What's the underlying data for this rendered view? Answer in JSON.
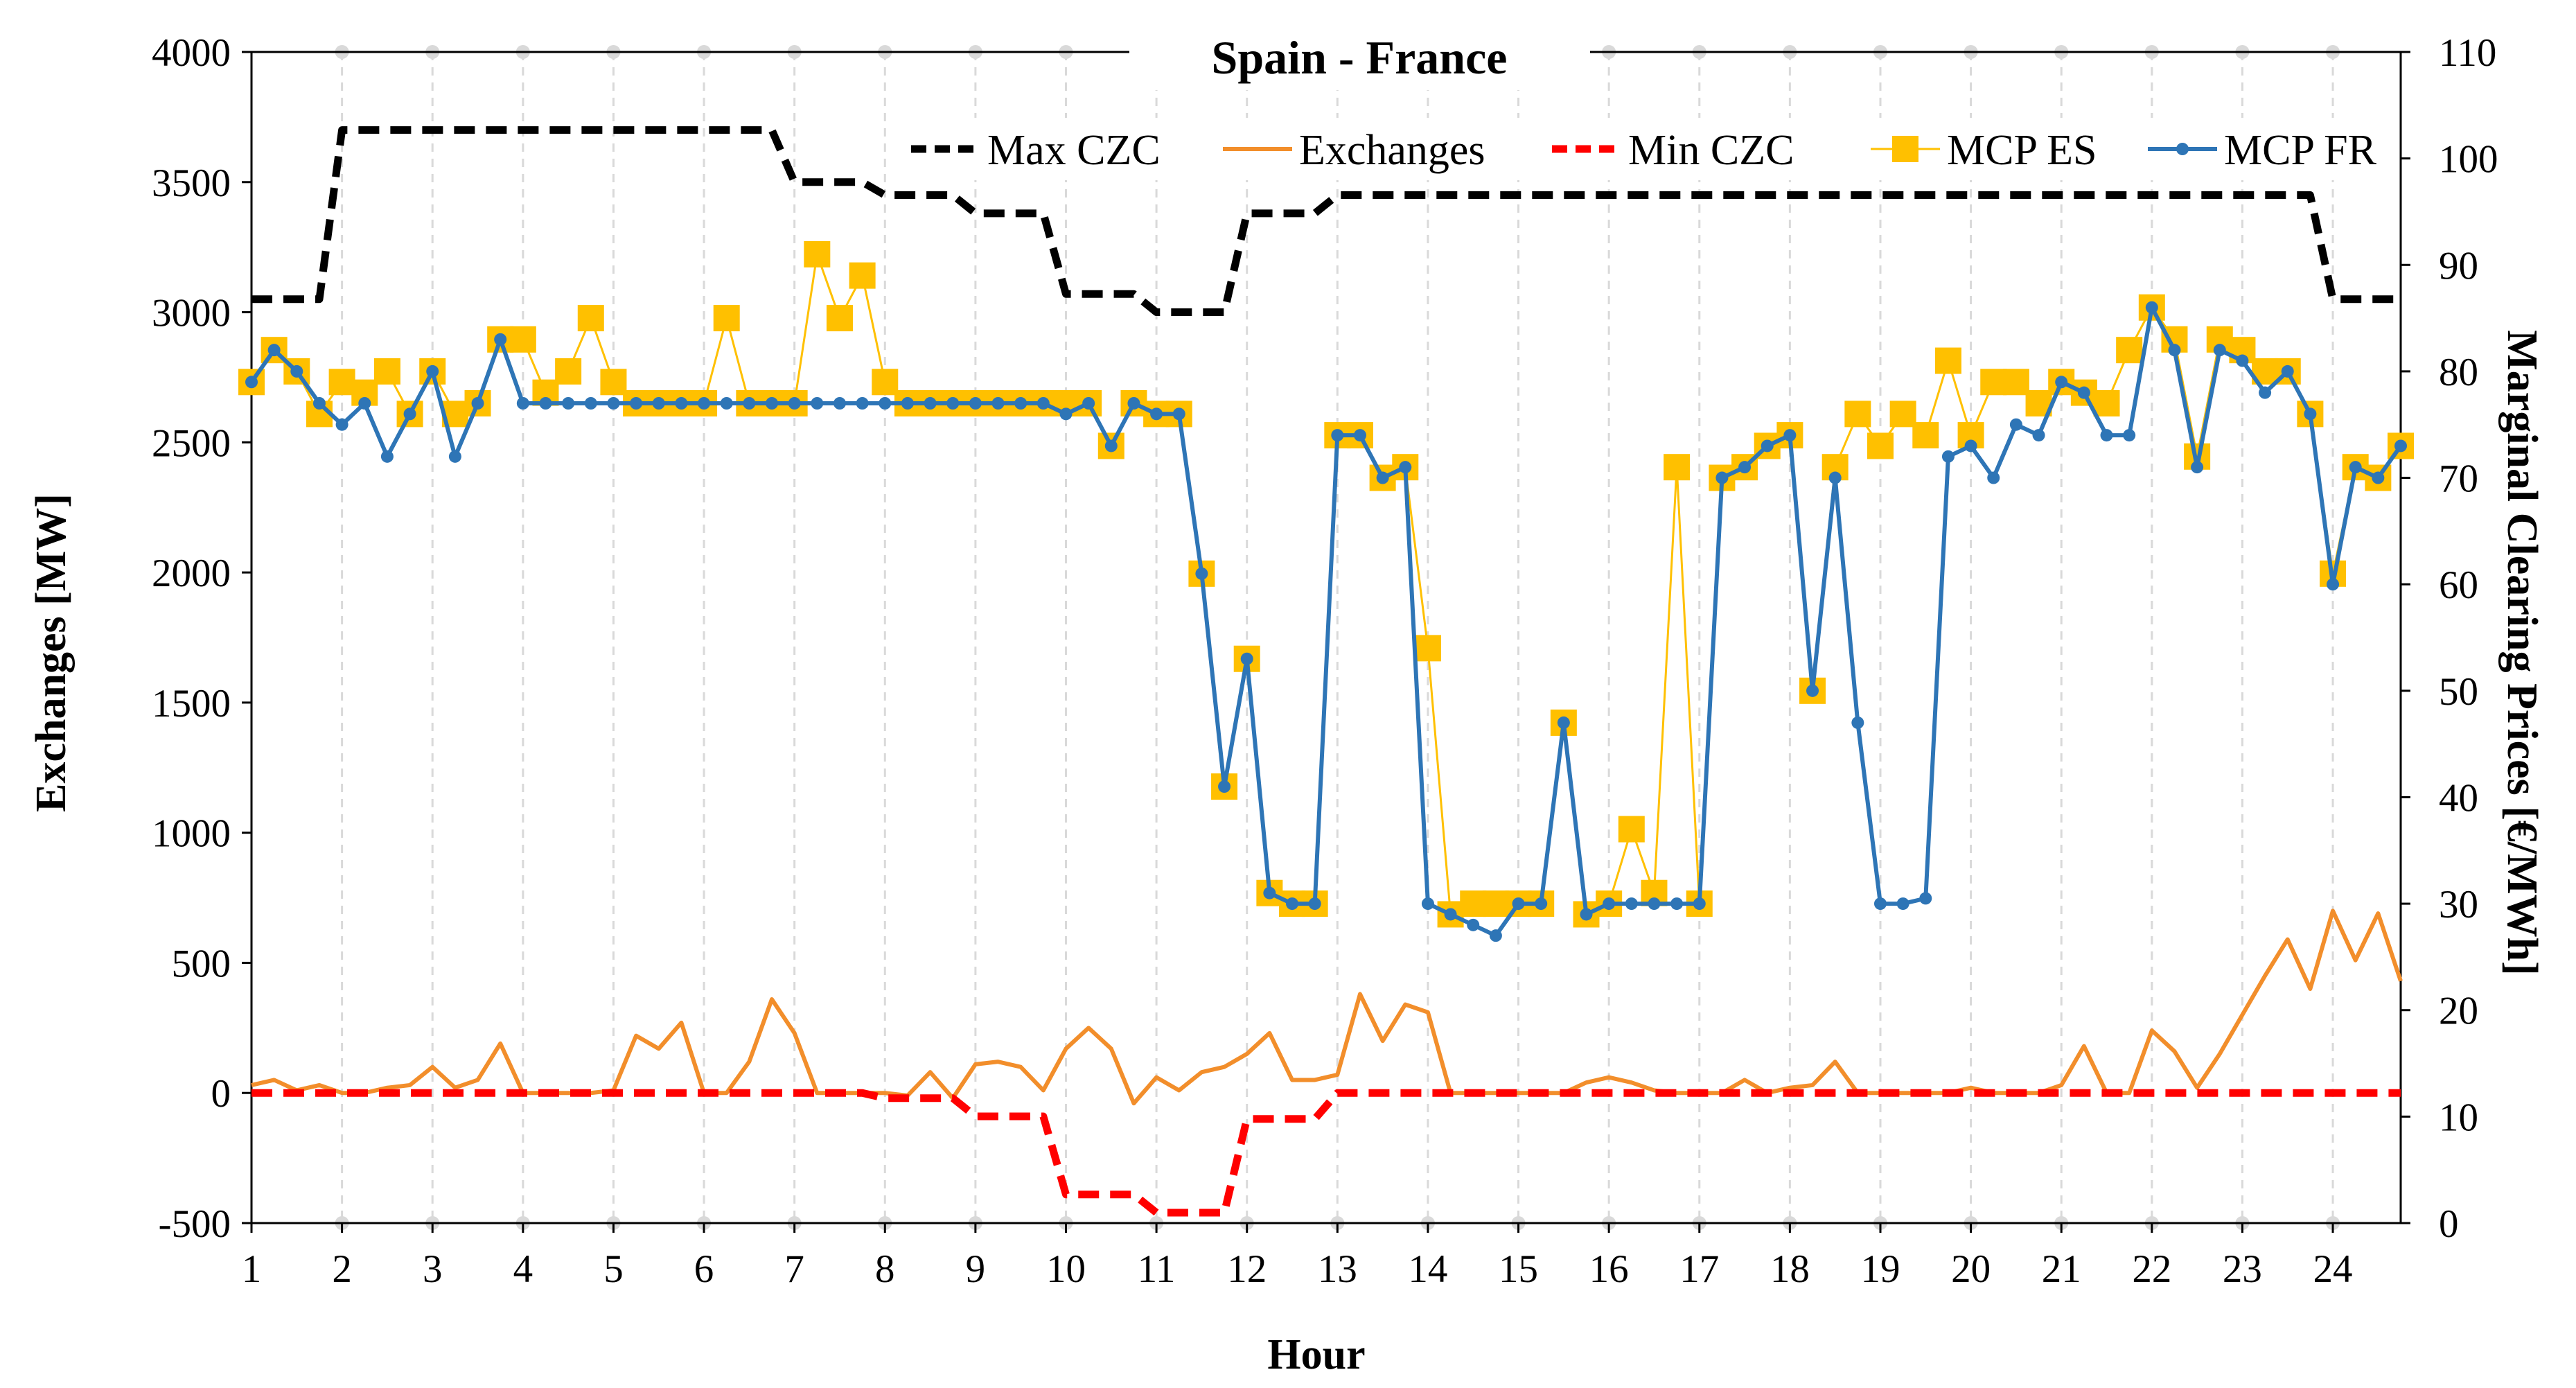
{
  "chart_data": {
    "type": "line",
    "title": "Spain - France",
    "xlabel": "Hour",
    "ylabel_left": "Exchanges [MW]",
    "ylabel_right": "Marginal Clearing Prices [€/MWh]",
    "ylim_left": [
      -500,
      4000
    ],
    "ylim_right": [
      0,
      110
    ],
    "xlim": [
      1,
      24.75
    ],
    "x_ticks": [
      1,
      2,
      3,
      4,
      5,
      6,
      7,
      8,
      9,
      10,
      11,
      12,
      13,
      14,
      15,
      16,
      17,
      18,
      19,
      20,
      21,
      22,
      23,
      24
    ],
    "y_left_ticks": [
      -500,
      0,
      500,
      1000,
      1500,
      2000,
      2500,
      3000,
      3500,
      4000
    ],
    "y_right_ticks": [
      0,
      10,
      20,
      30,
      40,
      50,
      60,
      70,
      80,
      90,
      100,
      110
    ],
    "grid": "vertical dashed",
    "legend": "top-right",
    "x": [
      1,
      1.25,
      1.5,
      1.75,
      2,
      2.25,
      2.5,
      2.75,
      3,
      3.25,
      3.5,
      3.75,
      4,
      4.25,
      4.5,
      4.75,
      5,
      5.25,
      5.5,
      5.75,
      6,
      6.25,
      6.5,
      6.75,
      7,
      7.25,
      7.5,
      7.75,
      8,
      8.25,
      8.5,
      8.75,
      9,
      9.25,
      9.5,
      9.75,
      10,
      10.25,
      10.5,
      10.75,
      11,
      11.25,
      11.5,
      11.75,
      12,
      12.25,
      12.5,
      12.75,
      13,
      13.25,
      13.5,
      13.75,
      14,
      14.25,
      14.5,
      14.75,
      15,
      15.25,
      15.5,
      15.75,
      16,
      16.25,
      16.5,
      16.75,
      17,
      17.25,
      17.5,
      17.75,
      18,
      18.25,
      18.5,
      18.75,
      19,
      19.25,
      19.5,
      19.75,
      20,
      20.25,
      20.5,
      20.75,
      21,
      21.25,
      21.5,
      21.75,
      22,
      22.25,
      22.5,
      22.75,
      23,
      23.25,
      23.5,
      23.75,
      24,
      24.25,
      24.5,
      24.75
    ],
    "series": [
      {
        "name": "Max CZC",
        "axis": "left",
        "style": "dashed-black",
        "values": [
          3050,
          3050,
          3050,
          3050,
          3700,
          3700,
          3700,
          3700,
          3700,
          3700,
          3700,
          3700,
          3700,
          3700,
          3700,
          3700,
          3700,
          3700,
          3700,
          3700,
          3700,
          3700,
          3700,
          3700,
          3500,
          3500,
          3500,
          3500,
          3450,
          3450,
          3450,
          3450,
          3380,
          3380,
          3380,
          3380,
          3070,
          3070,
          3070,
          3070,
          3000,
          3000,
          3000,
          3000,
          3380,
          3380,
          3380,
          3380,
          3450,
          3450,
          3450,
          3450,
          3450,
          3450,
          3450,
          3450,
          3450,
          3450,
          3450,
          3450,
          3450,
          3450,
          3450,
          3450,
          3450,
          3450,
          3450,
          3450,
          3450,
          3450,
          3450,
          3450,
          3450,
          3450,
          3450,
          3450,
          3450,
          3450,
          3450,
          3450,
          3450,
          3450,
          3450,
          3450,
          3450,
          3450,
          3450,
          3450,
          3450,
          3450,
          3450,
          3450,
          3050,
          3050,
          3050,
          3050
        ]
      },
      {
        "name": "Exchanges",
        "axis": "left",
        "style": "solid-orange",
        "values": [
          30,
          50,
          10,
          30,
          0,
          0,
          20,
          30,
          100,
          20,
          50,
          190,
          0,
          0,
          0,
          0,
          10,
          220,
          170,
          270,
          0,
          0,
          120,
          360,
          230,
          0,
          0,
          0,
          0,
          -10,
          80,
          -20,
          110,
          120,
          100,
          10,
          170,
          250,
          170,
          -40,
          60,
          10,
          80,
          100,
          150,
          230,
          50,
          50,
          70,
          380,
          200,
          340,
          310,
          0,
          0,
          0,
          0,
          0,
          0,
          40,
          60,
          40,
          10,
          0,
          0,
          0,
          50,
          0,
          20,
          30,
          120,
          0,
          0,
          0,
          0,
          0,
          20,
          0,
          0,
          0,
          30,
          180,
          0,
          0,
          240,
          160,
          20,
          150,
          300,
          450,
          590,
          400,
          700,
          510,
          690,
          430
        ]
      },
      {
        "name": "Min CZC",
        "axis": "left",
        "style": "dashed-red",
        "values": [
          0,
          0,
          0,
          0,
          0,
          0,
          0,
          0,
          0,
          0,
          0,
          0,
          0,
          0,
          0,
          0,
          0,
          0,
          0,
          0,
          0,
          0,
          0,
          0,
          0,
          0,
          0,
          0,
          -20,
          -20,
          -20,
          -20,
          -90,
          -90,
          -90,
          -90,
          -390,
          -390,
          -390,
          -390,
          -460,
          -460,
          -460,
          -460,
          -100,
          -100,
          -100,
          -100,
          0,
          0,
          0,
          0,
          0,
          0,
          0,
          0,
          0,
          0,
          0,
          0,
          0,
          0,
          0,
          0,
          0,
          0,
          0,
          0,
          0,
          0,
          0,
          0,
          0,
          0,
          0,
          0,
          0,
          0,
          0,
          0,
          0,
          0,
          0,
          0,
          0,
          0,
          0,
          0,
          0,
          0,
          0,
          0,
          0,
          0,
          0,
          0
        ]
      },
      {
        "name": "MCP ES",
        "axis": "right",
        "style": "square-yellow",
        "values": [
          79,
          82,
          80,
          76,
          79,
          78,
          80,
          76,
          80,
          76,
          77,
          83,
          83,
          78,
          80,
          85,
          79,
          77,
          77,
          77,
          77,
          85,
          77,
          77,
          77,
          91,
          85,
          89,
          79,
          77,
          77,
          77,
          77,
          77,
          77,
          77,
          77,
          77,
          73,
          77,
          76,
          76,
          61,
          41,
          53,
          31,
          30,
          30,
          74,
          74,
          70,
          71,
          54,
          29,
          30,
          30,
          30,
          30,
          47,
          29,
          30,
          37,
          31,
          71,
          30,
          70,
          71,
          73,
          74,
          50,
          71,
          76,
          73,
          76,
          74,
          81,
          74,
          79,
          79,
          77,
          79,
          78,
          77,
          82,
          86,
          83,
          72,
          83,
          82,
          80,
          80,
          76,
          61,
          71,
          70,
          73
        ]
      },
      {
        "name": "MCP FR",
        "axis": "right",
        "style": "dot-blue",
        "values": [
          79,
          82,
          80,
          77,
          75,
          77,
          72,
          76,
          80,
          72,
          77,
          83,
          77,
          77,
          77,
          77,
          77,
          77,
          77,
          77,
          77,
          77,
          77,
          77,
          77,
          77,
          77,
          77,
          77,
          77,
          77,
          77,
          77,
          77,
          77,
          77,
          76,
          77,
          73,
          77,
          76,
          76,
          61,
          41,
          53,
          31,
          30,
          30,
          74,
          74,
          70,
          71,
          30,
          29,
          28,
          27,
          30,
          30,
          47,
          29,
          30,
          30,
          30,
          30,
          30,
          70,
          71,
          73,
          74,
          50,
          70,
          47,
          30,
          30,
          30.5,
          72,
          73,
          70,
          75,
          74,
          79,
          78,
          74,
          74,
          86,
          82,
          71,
          82,
          81,
          78,
          80,
          76,
          60,
          71,
          70,
          73
        ]
      }
    ]
  }
}
